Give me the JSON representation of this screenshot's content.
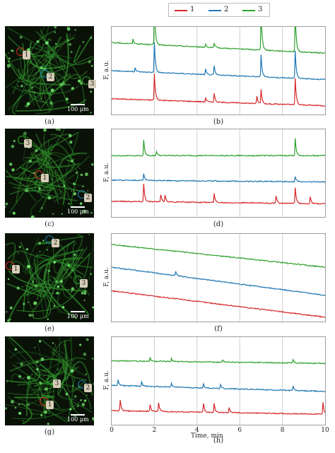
{
  "legend": {
    "items": [
      {
        "label": "1",
        "color": "#d62728"
      },
      {
        "label": "2",
        "color": "#1f77b4"
      },
      {
        "label": "3",
        "color": "#2ca02c"
      }
    ]
  },
  "panels": [
    {
      "image_letter": "(a)",
      "plot_letter": "(b)",
      "ylabel": "F, a.u.",
      "scale_label": "100 μm",
      "cell_labels": [
        "1",
        "2",
        "3"
      ]
    },
    {
      "image_letter": "(c)",
      "plot_letter": "(d)",
      "ylabel": "F, a.u.",
      "scale_label": "100 μm",
      "cell_labels": [
        "3",
        "1",
        "2"
      ]
    },
    {
      "image_letter": "(e)",
      "plot_letter": "(f)",
      "ylabel": "F, a.u.",
      "scale_label": "100 μm",
      "cell_labels": [
        "2",
        "1",
        "3"
      ]
    },
    {
      "image_letter": "(g)",
      "plot_letter": "(h)",
      "ylabel": "F, a.u.",
      "scale_label": "100 μm",
      "cell_labels": [
        "3",
        "2",
        "1"
      ]
    }
  ],
  "chart_data": [
    {
      "type": "line",
      "xlim": [
        0,
        10
      ],
      "xticks": [
        0,
        2,
        4,
        6,
        8,
        10
      ],
      "grid": "vertical",
      "ylabel": "F, a.u.",
      "series": [
        {
          "name": "1",
          "baseline": [
            0.18,
            0.1
          ],
          "spikes": [
            [
              2.0,
              0.3
            ],
            [
              4.4,
              0.05
            ],
            [
              4.8,
              0.1
            ],
            [
              6.8,
              0.08
            ],
            [
              7.0,
              0.16
            ],
            [
              8.6,
              0.3
            ]
          ]
        },
        {
          "name": "2",
          "baseline": [
            0.5,
            0.4
          ],
          "spikes": [
            [
              1.1,
              0.04
            ],
            [
              2.0,
              0.35
            ],
            [
              4.4,
              0.06
            ],
            [
              4.8,
              0.1
            ],
            [
              7.0,
              0.25
            ],
            [
              8.6,
              0.32
            ]
          ]
        },
        {
          "name": "3",
          "baseline": [
            0.82,
            0.7
          ],
          "spikes": [
            [
              1.0,
              0.05
            ],
            [
              2.0,
              0.45
            ],
            [
              4.4,
              0.04
            ],
            [
              4.8,
              0.05
            ],
            [
              7.0,
              0.45
            ],
            [
              8.6,
              0.45
            ]
          ]
        }
      ]
    },
    {
      "type": "line",
      "xlim": [
        0,
        10
      ],
      "xticks": [
        0,
        2,
        4,
        6,
        8,
        10
      ],
      "grid": "vertical",
      "ylabel": "F, a.u.",
      "series": [
        {
          "name": "1",
          "baseline": [
            0.18,
            0.15
          ],
          "spikes": [
            [
              1.5,
              0.2
            ],
            [
              2.3,
              0.08
            ],
            [
              2.5,
              0.08
            ],
            [
              4.8,
              0.1
            ],
            [
              7.7,
              0.08
            ],
            [
              8.6,
              0.18
            ],
            [
              9.3,
              0.08
            ]
          ]
        },
        {
          "name": "2",
          "baseline": [
            0.42,
            0.4
          ],
          "spikes": [
            [
              1.5,
              0.08
            ],
            [
              8.6,
              0.06
            ]
          ]
        },
        {
          "name": "3",
          "baseline": [
            0.7,
            0.7
          ],
          "spikes": [
            [
              1.5,
              0.18
            ],
            [
              2.1,
              0.05
            ],
            [
              8.6,
              0.2
            ]
          ]
        }
      ]
    },
    {
      "type": "line",
      "xlim": [
        0,
        10
      ],
      "xticks": [
        0,
        2,
        4,
        6,
        8,
        10
      ],
      "grid": "vertical",
      "ylabel": "F, a.u.",
      "series": [
        {
          "name": "1",
          "baseline": [
            0.35,
            0.05
          ],
          "spikes": []
        },
        {
          "name": "2",
          "baseline": [
            0.62,
            0.3
          ],
          "spikes": [
            [
              3.0,
              0.05
            ]
          ]
        },
        {
          "name": "3",
          "baseline": [
            0.88,
            0.62
          ],
          "spikes": []
        }
      ]
    },
    {
      "type": "line",
      "xlim": [
        0,
        10
      ],
      "xticks": [
        0,
        2,
        4,
        6,
        8,
        10
      ],
      "grid": "vertical",
      "ylabel": "F, a.u.",
      "xlabel": "Time, min",
      "series": [
        {
          "name": "1",
          "baseline": [
            0.16,
            0.12
          ],
          "spikes": [
            [
              0.4,
              0.12
            ],
            [
              1.8,
              0.08
            ],
            [
              2.2,
              0.1
            ],
            [
              4.3,
              0.1
            ],
            [
              4.8,
              0.1
            ],
            [
              5.5,
              0.06
            ],
            [
              9.9,
              0.14
            ]
          ]
        },
        {
          "name": "2",
          "baseline": [
            0.45,
            0.38
          ],
          "spikes": [
            [
              0.3,
              0.06
            ],
            [
              1.4,
              0.05
            ],
            [
              2.8,
              0.04
            ],
            [
              4.3,
              0.05
            ],
            [
              5.1,
              0.04
            ],
            [
              8.5,
              0.05
            ]
          ]
        },
        {
          "name": "3",
          "baseline": [
            0.73,
            0.7
          ],
          "spikes": [
            [
              1.8,
              0.04
            ],
            [
              2.8,
              0.03
            ],
            [
              5.2,
              0.03
            ],
            [
              8.5,
              0.04
            ]
          ]
        }
      ]
    }
  ],
  "xaxis": {
    "ticks": [
      "0",
      "2",
      "4",
      "6",
      "8",
      "10"
    ],
    "label": "Time, min"
  }
}
